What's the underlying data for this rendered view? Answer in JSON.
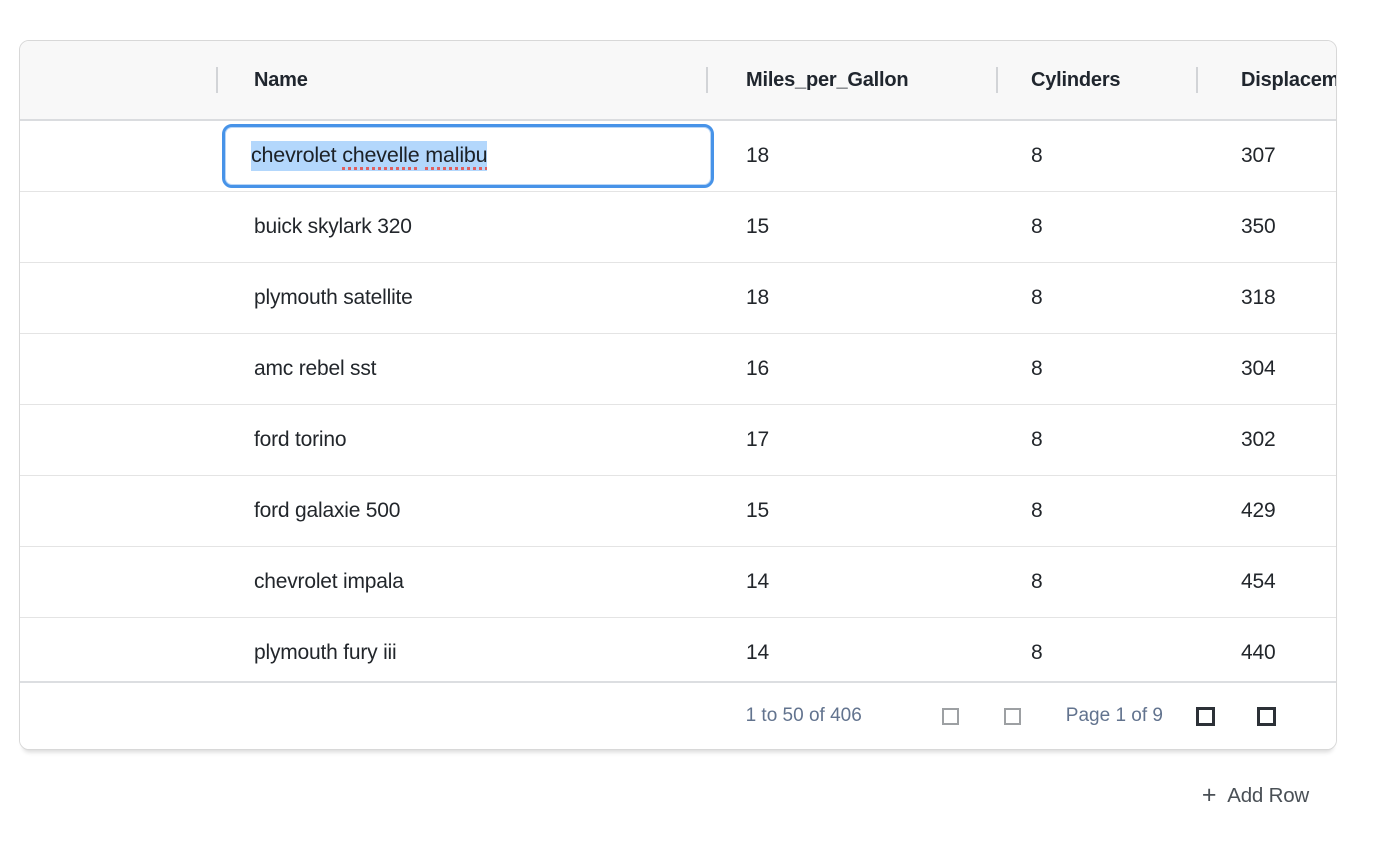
{
  "table": {
    "columns": [
      {
        "label": ""
      },
      {
        "label": "Name"
      },
      {
        "label": "Miles_per_Gallon"
      },
      {
        "label": "Cylinders"
      },
      {
        "label": "Displacement"
      }
    ],
    "rows": [
      {
        "name": "chevrolet chevelle malibu",
        "mpg": "18",
        "cylinders": "8",
        "displacement": "307"
      },
      {
        "name": "buick skylark 320",
        "mpg": "15",
        "cylinders": "8",
        "displacement": "350"
      },
      {
        "name": "plymouth satellite",
        "mpg": "18",
        "cylinders": "8",
        "displacement": "318"
      },
      {
        "name": "amc rebel sst",
        "mpg": "16",
        "cylinders": "8",
        "displacement": "304"
      },
      {
        "name": "ford torino",
        "mpg": "17",
        "cylinders": "8",
        "displacement": "302"
      },
      {
        "name": "ford galaxie 500",
        "mpg": "15",
        "cylinders": "8",
        "displacement": "429"
      },
      {
        "name": "chevrolet impala",
        "mpg": "14",
        "cylinders": "8",
        "displacement": "454"
      },
      {
        "name": "plymouth fury iii",
        "mpg": "14",
        "cylinders": "8",
        "displacement": "440"
      }
    ],
    "editor": {
      "value": "chevrolet chevelle malibu",
      "segments": [
        {
          "text": "chevrolet ",
          "misspelled": false
        },
        {
          "text": "chevelle",
          "misspelled": true
        },
        {
          "text": " ",
          "misspelled": false
        },
        {
          "text": "malibu",
          "misspelled": true
        }
      ]
    },
    "footer": {
      "range_label": "1 to 50 of 406",
      "page_label": "Page 1 of 9"
    }
  },
  "add_row": {
    "plus": "+",
    "label": "Add Row"
  },
  "colors": {
    "accent": "#4793e8",
    "selection": "#b3d7fc",
    "spellcheck": "#e05f5f",
    "footer-text": "#62738e",
    "header-bg": "#f8f8f8",
    "card-border": "#d8d8d8",
    "row-line": "#e4e4e4",
    "text": "#22262b",
    "header-text": "#20262e"
  }
}
